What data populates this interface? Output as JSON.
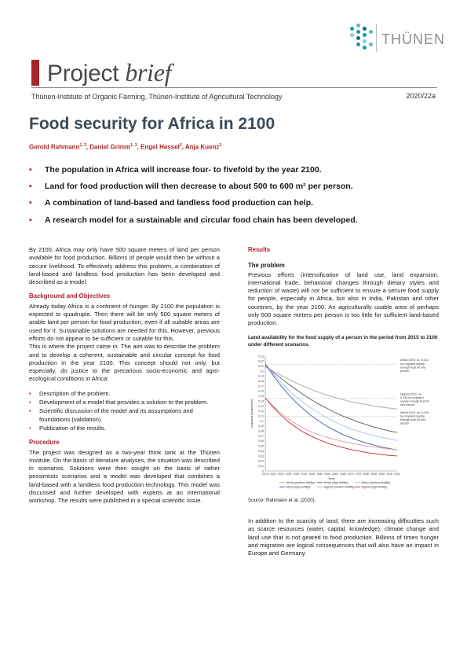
{
  "header": {
    "logo_text": "THÜNEN",
    "logo_colors": [
      "#00a2b4",
      "#5fb8c4",
      "#0a6f86",
      "#8fc9d3",
      "#2f8ea6"
    ],
    "brand_word": "Project",
    "brand_italic": "brief",
    "institutes": "Thünen-Institute of Organic Farming, Thünen-Institute of Agricultural Technology",
    "issue": "2020/22a"
  },
  "title": "Food security for Africa in 2100",
  "authors": [
    {
      "name": "Gerold Rahmann",
      "sup": "1, 3"
    },
    {
      "name": "Daniel Grimm",
      "sup": "1, 3"
    },
    {
      "name": "Engel Hessel",
      "sup": "2"
    },
    {
      "name": "Anja Kuenz",
      "sup": "2"
    }
  ],
  "authors_sep": ", ",
  "key_points": [
    "The population in Africa will increase four- to fivefold by the year 2100.",
    "Land for food production will then decrease to about 500 to 600 m² per person.",
    "A combination of land-based and landless food production can help.",
    "A research model for a sustainable and circular food chain has been developed."
  ],
  "left": {
    "intro": "By 2100, Africa may only have 500 square meters of land per person available for food production. Billions of people would then be without a secure livelihood. To effectively address this problem, a combination of land-based and landless food production has been developed and described as a model.",
    "bg_head": "Background and Objectives",
    "bg_p1": "Already today Africa is a continent of hunger. By 2100 the population is expected to quadruple. Then there will be only 500 square meters of arable land per person for food production, even if all suitable areas are used for it. Sustainable solutions are needed for this. However, previous efforts do not appear to be sufficient or suitable for this.",
    "bg_p2": "This is where the project came in. The aim was to describe the problem and to develop a coherent, sustainable and circular concept for food production in the year 2100. This concept should not only, but especially, do justice to the precarious socio-economic and agro-ecological conditions in Africa:",
    "bullets": [
      "Description of the problem.",
      "Development of a model that provides a solution to the problem.",
      "Scientific discussion of the model and its assumptions and foundations (validation).",
      "Publication of the results."
    ],
    "proc_head": "Procedure",
    "proc_p": "The project was designed as a two-year think tank at the Thünen Institute. On the basis of literature analyses, the situation was described in scenarios. Solutions were then sought on the basis of rather pessimistic scenarios and a model was developed that combines a land-based with a landless food production technology. This model was discussed and further developed with experts at an international workshop. The results were published in a special scientific issue."
  },
  "right": {
    "results_head": "Results",
    "problem_head": "The problem",
    "problem_p": "Previous efforts (intensification of land use, land expansion, international trade, behavioral changes through dietary styles and reduction of waste) will not be sufficient to ensure a secure food supply for people, especially in Africa, but also in India, Pakistan and other countries, by the year 2100. An agriculturally usable area of perhaps only 500 square meters per person is too little for sufficient land-based production.",
    "figure_caption": "Land availability for the food supply of a person in the period from 2015 to 2100 under different scenarios.",
    "source": "Source: Rahmann et al. (2020).",
    "closing_p": "In addition to the scarcity of land, there are increasing difficulties such as scarce resources (water, capital, knowledge), climate change and land use that is not geared to food production. Billions of times hunger and migration are logical consequences that will also have an impact in Europe and Germany."
  },
  "chart_data": {
    "type": "line",
    "title": "",
    "xlabel": "Year",
    "ylabel": "cropland (ha/person)",
    "x": [
      2015,
      2020,
      2025,
      2030,
      2035,
      2040,
      2045,
      2050,
      2055,
      2060,
      2065,
      2070,
      2075,
      2080,
      2085,
      2090,
      2095,
      2100
    ],
    "ylim": [
      0,
      0.23
    ],
    "yticks": [
      0,
      0.01,
      0.02,
      0.03,
      0.04,
      0.05,
      0.06,
      0.07,
      0.08,
      0.09,
      0.1,
      0.11,
      0.12,
      0.13,
      0.14,
      0.15,
      0.16,
      0.17,
      0.18,
      0.19,
      0.2,
      0.21,
      0.22,
      0.23
    ],
    "xticks": [
      "2015",
      "2020",
      "2025",
      "2030",
      "2035",
      "2040",
      "2045",
      "2050",
      "2055",
      "2060",
      "2065",
      "2070",
      "2075",
      "2080",
      "2085",
      "2090",
      "2095",
      "2100"
    ],
    "grid": false,
    "legend_position": "bottom",
    "series": [
      {
        "name": "World (medium fertility)",
        "color": "#a6a6a6",
        "values": [
          0.21,
          0.2,
          0.192,
          0.184,
          0.176,
          0.169,
          0.163,
          0.157,
          0.152,
          0.147,
          0.143,
          0.139,
          0.136,
          0.133,
          0.13,
          0.128,
          0.126,
          0.124
        ]
      },
      {
        "name": "World (high fertility)",
        "color": "#5a5a5a",
        "values": [
          0.21,
          0.198,
          0.186,
          0.174,
          0.163,
          0.152,
          0.142,
          0.133,
          0.125,
          0.117,
          0.11,
          0.104,
          0.098,
          0.093,
          0.088,
          0.084,
          0.08,
          0.077
        ]
      },
      {
        "name": "Africa (medium fertility)",
        "color": "#a9c3e0",
        "values": [
          0.214,
          0.195,
          0.178,
          0.162,
          0.148,
          0.136,
          0.125,
          0.115,
          0.106,
          0.098,
          0.091,
          0.085,
          0.08,
          0.075,
          0.071,
          0.067,
          0.064,
          0.061
        ]
      },
      {
        "name": "Africa (high fertility)",
        "color": "#3c5fa3",
        "values": [
          0.214,
          0.192,
          0.171,
          0.153,
          0.137,
          0.123,
          0.11,
          0.099,
          0.089,
          0.081,
          0.073,
          0.067,
          0.061,
          0.056,
          0.052,
          0.048,
          0.045,
          0.042
        ]
      },
      {
        "name": "Nigeria (medium fertility)",
        "color": "#e29a9a",
        "values": [
          0.146,
          0.13,
          0.116,
          0.104,
          0.094,
          0.085,
          0.078,
          0.072,
          0.067,
          0.063,
          0.059,
          0.056,
          0.053,
          0.05,
          0.048,
          0.046,
          0.044,
          0.042
        ]
      },
      {
        "name": "Nigeria (high fertility)",
        "color": "#c0262e",
        "values": [
          0.146,
          0.128,
          0.112,
          0.098,
          0.087,
          0.077,
          0.069,
          0.062,
          0.056,
          0.051,
          0.047,
          0.043,
          0.04,
          0.037,
          0.035,
          0.033,
          0.031,
          0.03
        ]
      }
    ],
    "reference_lines": [
      {
        "value": 0.214,
        "label": "Africa 2015: ca. 0,214 ha cropland supply enough kcal for one person"
      },
      {
        "value": 0.146,
        "label": "Nigeria 2015: ca. 0,146 ha cropland supply enough kcal for one person"
      },
      {
        "value": 0.109,
        "label": "World 2015: ca. 0,109 ha cropland supply enough kcal for one person"
      }
    ]
  }
}
